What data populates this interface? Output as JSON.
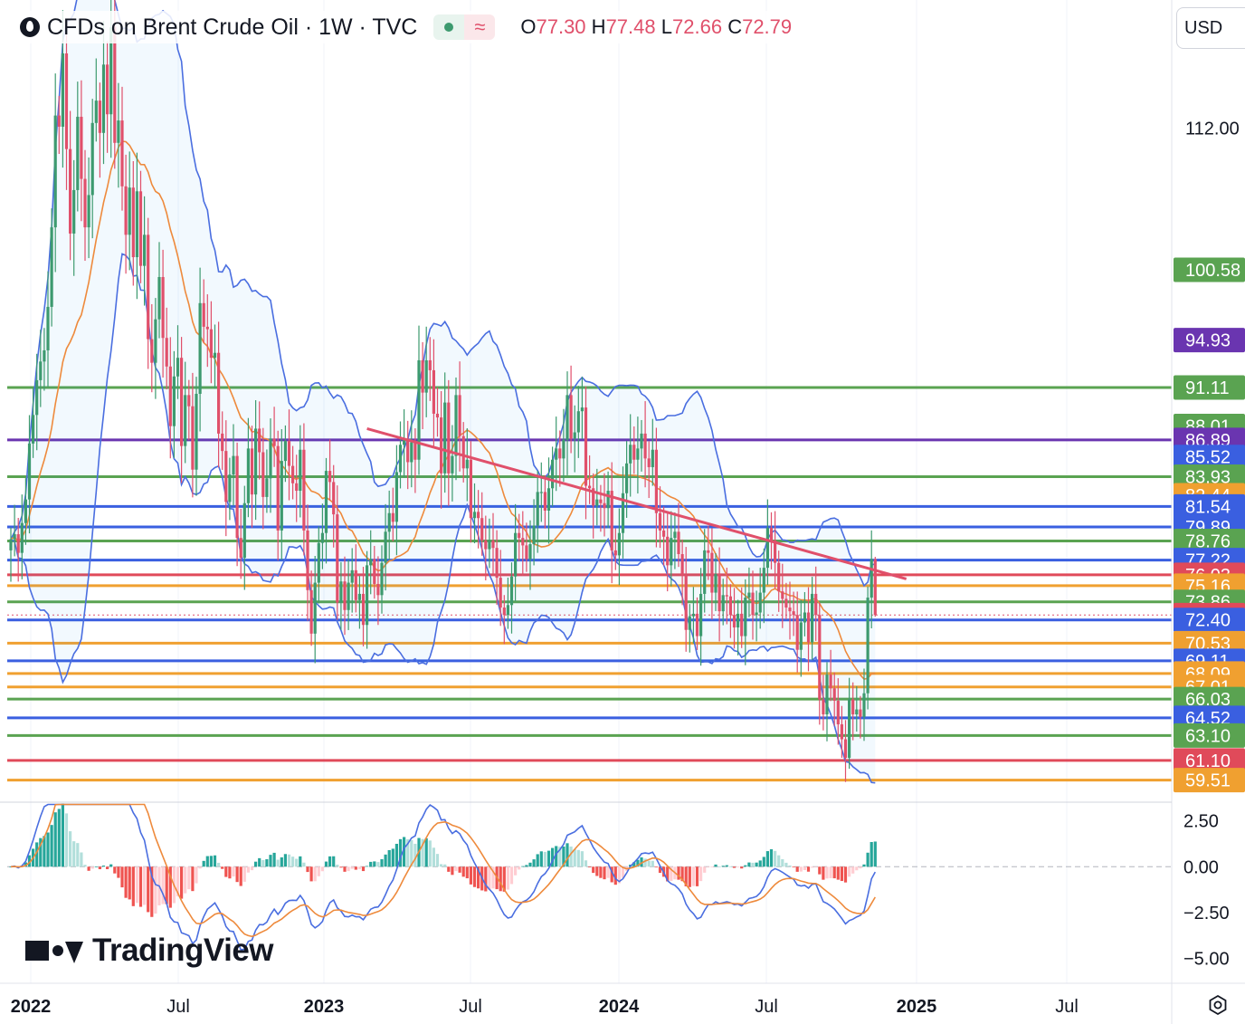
{
  "header": {
    "title": "CFDs on Brent Crude Oil · 1W · TVC",
    "open_label": "O",
    "open": "77.30",
    "high_label": "H",
    "high": "77.48",
    "low_label": "L",
    "low": "72.66",
    "close_label": "C",
    "close": "72.79",
    "badge_symbol": "≈"
  },
  "currency": "USD",
  "logo_text": "TradingView",
  "colors": {
    "up": "#3d9a6f",
    "down": "#e0506b",
    "green_line": "#5aa351",
    "blue_line": "#3a5fe0",
    "orange_line": "#f0a030",
    "red_line": "#e04a5a",
    "purple_line": "#6a35b0",
    "band": "#4a6ee0",
    "sma": "#ee8a3c",
    "trend": "#e0506b",
    "macd": "#4a6ee0",
    "signal": "#ee8a3c"
  },
  "chart_data": [
    {
      "type": "candlestick",
      "title": "CFDs on Brent Crude Oil · 1W · TVC",
      "ylim": [
        58.5,
        118
      ],
      "x_ticks": [
        "2022",
        "Jul",
        "2023",
        "Jul",
        "2024",
        "Jul",
        "2025",
        "Jul"
      ],
      "price_ticks": [
        "112.00"
      ],
      "levels": [
        {
          "label": "100.58",
          "value": 100.58,
          "color": "#5aa351",
          "line": false
        },
        {
          "label": "94.93",
          "value": 94.93,
          "color": "#6a35b0",
          "line": false
        },
        {
          "label": "91.11",
          "value": 91.11,
          "color": "#5aa351",
          "line": true
        },
        {
          "label": "88.01",
          "value": 88.01,
          "color": "#5aa351",
          "line": false
        },
        {
          "label": "86.89",
          "value": 86.89,
          "color": "#6a35b0",
          "line": true
        },
        {
          "label": "85.52",
          "value": 85.52,
          "color": "#3a5fe0",
          "line": false
        },
        {
          "label": "83.93",
          "value": 83.93,
          "color": "#5aa351",
          "line": true
        },
        {
          "label": "82.44",
          "value": 82.44,
          "color": "#f0a030",
          "line": false
        },
        {
          "label": "81.54",
          "value": 81.54,
          "color": "#3a5fe0",
          "line": true
        },
        {
          "label": "79.89",
          "value": 79.89,
          "color": "#3a5fe0",
          "line": true
        },
        {
          "label": "78.76",
          "value": 78.76,
          "color": "#5aa351",
          "line": true
        },
        {
          "label": "77.22",
          "value": 77.22,
          "color": "#3a5fe0",
          "line": true
        },
        {
          "label": "76.03",
          "value": 76.03,
          "color": "#e04a5a",
          "line": true
        },
        {
          "label": "75.16",
          "value": 75.16,
          "color": "#f0a030",
          "line": true
        },
        {
          "label": "73.86",
          "value": 73.86,
          "color": "#5aa351",
          "line": true
        },
        {
          "label": "72.79",
          "value": 72.79,
          "color": "#e04a5a",
          "line": false
        },
        {
          "label": "72.40",
          "value": 72.4,
          "color": "#3a5fe0",
          "line": true
        },
        {
          "label": "70.53",
          "value": 70.53,
          "color": "#f0a030",
          "line": true
        },
        {
          "label": "69.11",
          "value": 69.11,
          "color": "#3a5fe0",
          "line": true
        },
        {
          "label": "68.09",
          "value": 68.09,
          "color": "#f0a030",
          "line": true
        },
        {
          "label": "67.01",
          "value": 67.01,
          "color": "#f0a030",
          "line": true
        },
        {
          "label": "66.03",
          "value": 66.03,
          "color": "#5aa351",
          "line": true
        },
        {
          "label": "64.52",
          "value": 64.52,
          "color": "#3a5fe0",
          "line": true
        },
        {
          "label": "63.10",
          "value": 63.1,
          "color": "#5aa351",
          "line": true
        },
        {
          "label": "61.10",
          "value": 61.1,
          "color": "#e04a5a",
          "line": true
        },
        {
          "label": "59.51",
          "value": 59.51,
          "color": "#f0a030",
          "line": true
        }
      ],
      "trendline": {
        "from": {
          "week": 96,
          "price": 87.8
        },
        "to": {
          "week": 217,
          "price": 76.3
        }
      },
      "closes": [
        78.9,
        79.3,
        77.8,
        80.2,
        82.1,
        86.6,
        88.9,
        91.7,
        93.2,
        94.1,
        97.6,
        104.0,
        113.0,
        112.1,
        118.0,
        110.3,
        103.5,
        107.0,
        112.9,
        107.9,
        104.0,
        106.6,
        112.4,
        114.2,
        111.6,
        117.1,
        113.1,
        120.1,
        110.8,
        112.6,
        107.3,
        103.4,
        107.2,
        101.6,
        106.9,
        100.9,
        103.4,
        95.0,
        93.1,
        96.6,
        100.0,
        95.1,
        92.8,
        88.0,
        92.0,
        93.5,
        86.4,
        90.5,
        89.6,
        84.5,
        90.6,
        97.9,
        96.0,
        95.8,
        93.5,
        93.9,
        87.4,
        86.0,
        81.9,
        84.1,
        85.6,
        79.0,
        77.4,
        81.8,
        86.2,
        82.5,
        87.8,
        85.9,
        82.3,
        83.8,
        87.0,
        86.4,
        79.6,
        85.2,
        86.8,
        84.8,
        83.4,
        82.8,
        86.1,
        79.6,
        74.8,
        71.3,
        75.4,
        78.6,
        79.4,
        84.4,
        83.5,
        80.9,
        73.8,
        75.5,
        73.2,
        75.4,
        76.4,
        74.0,
        74.5,
        72.0,
        76.8,
        77.3,
        75.3,
        74.4,
        77.0,
        79.5,
        81.0,
        80.3,
        84.3,
        86.5,
        86.9,
        85.1,
        86.7,
        85.3,
        93.3,
        90.7,
        93.3,
        92.5,
        89.0,
        88.7,
        84.2,
        89.9,
        84.2,
        85.6,
        90.5,
        87.2,
        84.6,
        85.3,
        80.6,
        81.1,
        80.6,
        78.8,
        78.1,
        78.8,
        78.2,
        75.8,
        73.4,
        72.8,
        73.6,
        75.9,
        79.4,
        79.0,
        78.4,
        77.3,
        78.5,
        80.0,
        82.7,
        82.7,
        81.2,
        83.0,
        85.3,
        86.2,
        85.4,
        86.9,
        90.5,
        87.0,
        87.5,
        89.2,
        89.5,
        83.2,
        83.0,
        81.6,
        82.1,
        81.8,
        81.4,
        82.8,
        78.0,
        77.6,
        79.4,
        82.6,
        85.0,
        86.5,
        85.3,
        86.2,
        87.4,
        85.4,
        84.7,
        86.1,
        81.0,
        79.6,
        79.1,
        76.8,
        79.0,
        79.5,
        77.7,
        76.0,
        71.6,
        72.7,
        72.9,
        71.1,
        74.5,
        78.0,
        77.8,
        74.6,
        76.1,
        73.1,
        74.4,
        74.3,
        72.8,
        71.8,
        72.9,
        71.1,
        74.2,
        74.6,
        72.8,
        73.0,
        74.6,
        76.6,
        79.8,
        78.8,
        77.0,
        74.7,
        74.1,
        73.4,
        73.1,
        72.8,
        70.0,
        72.2,
        73.0,
        70.6,
        74.5,
        72.8,
        66.0,
        64.8,
        68.0,
        66.9,
        65.9,
        64.0,
        62.8,
        61.3,
        66.0,
        64.8,
        65.2,
        64.6,
        66.5,
        74.2,
        77.3,
        72.8
      ]
    },
    {
      "type": "line",
      "title": "MACD",
      "ylim": [
        -5.6,
        3.4
      ],
      "y_ticks": [
        "2.50",
        "0.00",
        "−2.50",
        "−5.00"
      ]
    }
  ]
}
